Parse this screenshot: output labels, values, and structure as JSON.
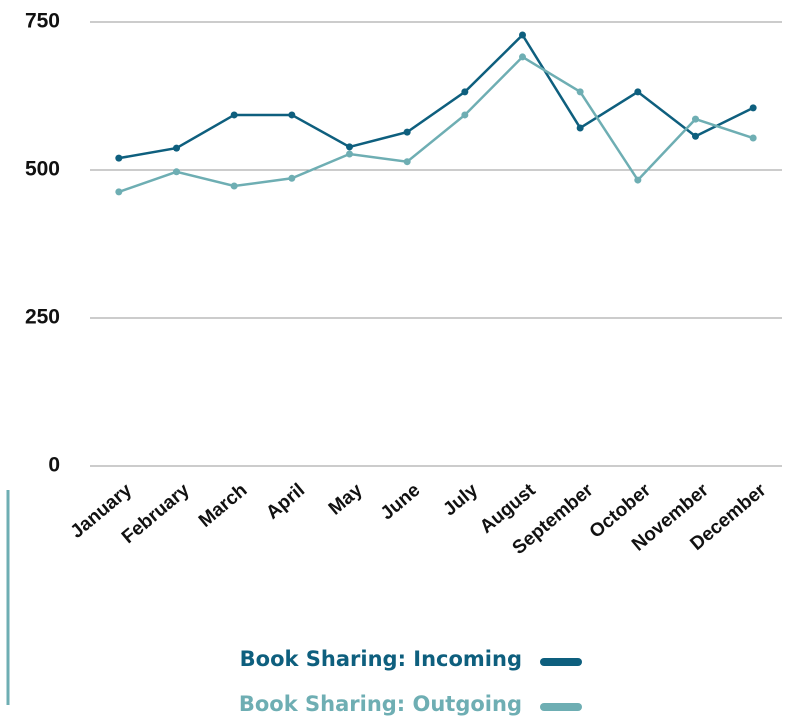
{
  "chart_data": {
    "type": "line",
    "categories": [
      "January",
      "February",
      "March",
      "April",
      "May",
      "June",
      "July",
      "August",
      "September",
      "October",
      "November",
      "December"
    ],
    "series": [
      {
        "name": "Book Sharing: Incoming",
        "color": "#0e5f7e",
        "values": [
          520,
          537,
          593,
          593,
          539,
          564,
          632,
          728,
          571,
          632,
          557,
          605
        ]
      },
      {
        "name": "Book Sharing: Outgoing",
        "color": "#6eaeb3",
        "values": [
          463,
          497,
          473,
          486,
          527,
          514,
          593,
          691,
          632,
          483,
          586,
          554
        ]
      }
    ],
    "ylim": [
      0,
      750
    ],
    "yticks": [
      0,
      250,
      500,
      750
    ],
    "grid": true
  }
}
